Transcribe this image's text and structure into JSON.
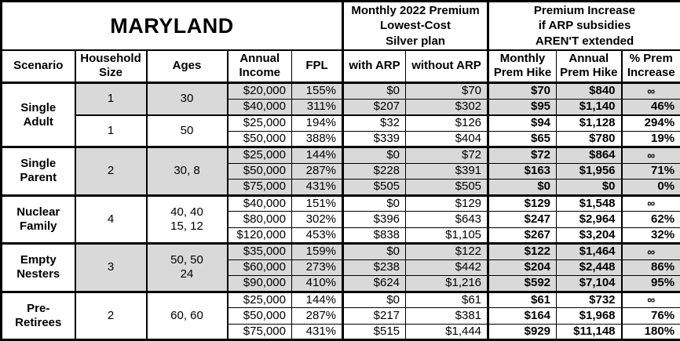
{
  "table": {
    "title": "MARYLAND",
    "premium_header": "Monthly 2022 Premium\nLowest-Cost\nSilver plan",
    "increase_header": "Premium Increase\nif ARP subsidies\nAREN'T extended",
    "columns": {
      "scenario": "Scenario",
      "household_size": "Household\nSize",
      "ages": "Ages",
      "annual_income": "Annual\nIncome",
      "fpl": "FPL",
      "with_arp": "with ARP",
      "without_arp": "without ARP",
      "monthly_prem_hike": "Monthly\nPrem Hike",
      "annual_prem_hike": "Annual\nPrem Hike",
      "pct_prem_increase": "% Prem\nIncrease"
    },
    "colors": {
      "shaded_row": "#d9d9d9",
      "border": "#000000",
      "background": "#ffffff"
    },
    "infinity_symbol": "∞",
    "data_column_names": [
      "annual-income-cell",
      "fpl-cell",
      "with-arp-cell",
      "without-arp-cell",
      "monthly-prem-hike-cell",
      "annual-prem-hike-cell",
      "pct-prem-increase-cell"
    ],
    "groups": [
      {
        "scenario": "Single\nAdult",
        "subgroups": [
          {
            "household_size": "1",
            "ages": "30",
            "shaded": true,
            "rows": [
              [
                "$20,000",
                "155%",
                "$0",
                "$70",
                "$70",
                "$840",
                "∞"
              ],
              [
                "$40,000",
                "311%",
                "$207",
                "$302",
                "$95",
                "$1,140",
                "46%"
              ]
            ]
          },
          {
            "household_size": "1",
            "ages": "50",
            "shaded": false,
            "rows": [
              [
                "$25,000",
                "194%",
                "$32",
                "$126",
                "$94",
                "$1,128",
                "294%"
              ],
              [
                "$50,000",
                "388%",
                "$339",
                "$404",
                "$65",
                "$780",
                "19%"
              ]
            ]
          }
        ]
      },
      {
        "scenario": "Single\nParent",
        "subgroups": [
          {
            "household_size": "2",
            "ages": "30, 8",
            "shaded": true,
            "rows": [
              [
                "$25,000",
                "144%",
                "$0",
                "$72",
                "$72",
                "$864",
                "∞"
              ],
              [
                "$50,000",
                "287%",
                "$228",
                "$391",
                "$163",
                "$1,956",
                "71%"
              ],
              [
                "$75,000",
                "431%",
                "$505",
                "$505",
                "$0",
                "$0",
                "0%"
              ]
            ]
          }
        ]
      },
      {
        "scenario": "Nuclear\nFamily",
        "subgroups": [
          {
            "household_size": "4",
            "ages": "40, 40\n15, 12",
            "shaded": false,
            "rows": [
              [
                "$40,000",
                "151%",
                "$0",
                "$129",
                "$129",
                "$1,548",
                "∞"
              ],
              [
                "$80,000",
                "302%",
                "$396",
                "$643",
                "$247",
                "$2,964",
                "62%"
              ],
              [
                "$120,000",
                "453%",
                "$838",
                "$1,105",
                "$267",
                "$3,204",
                "32%"
              ]
            ]
          }
        ]
      },
      {
        "scenario": "Empty\nNesters",
        "subgroups": [
          {
            "household_size": "3",
            "ages": "50, 50\n24",
            "shaded": true,
            "rows": [
              [
                "$35,000",
                "159%",
                "$0",
                "$122",
                "$122",
                "$1,464",
                "∞"
              ],
              [
                "$60,000",
                "273%",
                "$238",
                "$442",
                "$204",
                "$2,448",
                "86%"
              ],
              [
                "$90,000",
                "410%",
                "$624",
                "$1,216",
                "$592",
                "$7,104",
                "95%"
              ]
            ]
          }
        ]
      },
      {
        "scenario": "Pre-\nRetirees",
        "subgroups": [
          {
            "household_size": "2",
            "ages": "60, 60",
            "shaded": false,
            "rows": [
              [
                "$25,000",
                "144%",
                "$0",
                "$61",
                "$61",
                "$732",
                "∞"
              ],
              [
                "$50,000",
                "287%",
                "$217",
                "$381",
                "$164",
                "$1,968",
                "76%"
              ],
              [
                "$75,000",
                "431%",
                "$515",
                "$1,444",
                "$929",
                "$11,148",
                "180%"
              ]
            ]
          }
        ]
      }
    ]
  }
}
